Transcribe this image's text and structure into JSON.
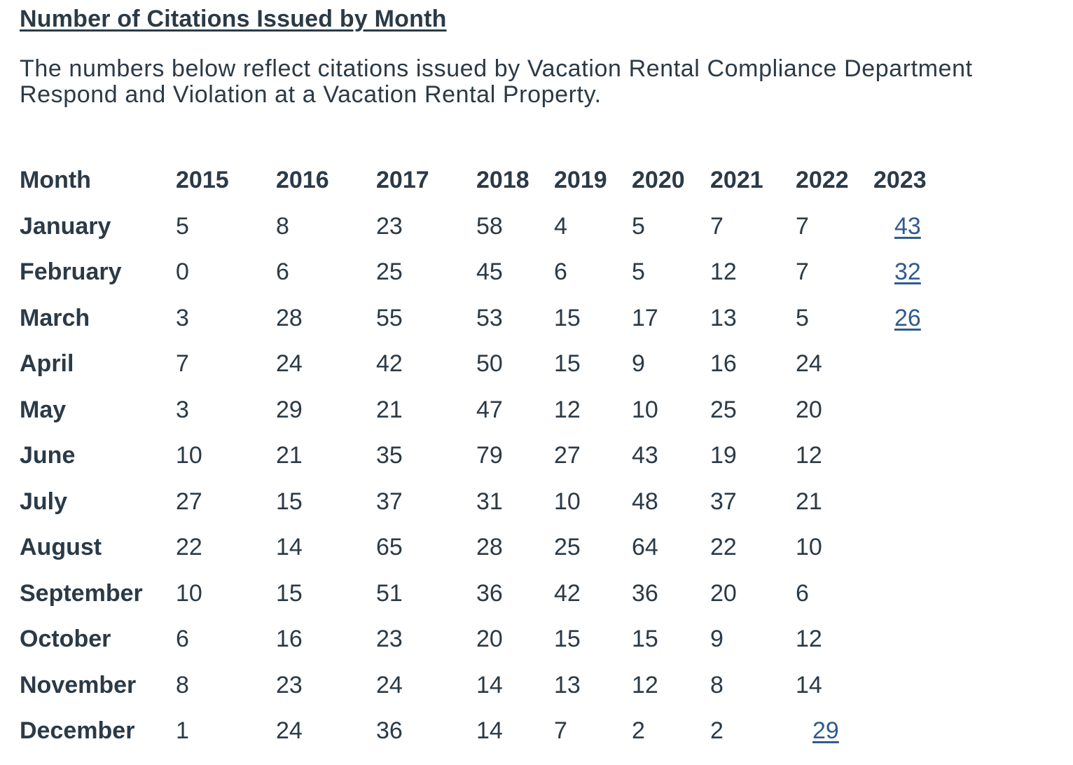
{
  "title": "Number of Citations Issued by Month",
  "intro": {
    "line1": "The numbers below reflect citations issued by Vacation Rental Compliance Department",
    "line2": "Respond and Violation at a Vacation Rental Property."
  },
  "table": {
    "headers": [
      "Month",
      "2015",
      "2016",
      "2017",
      "2018",
      "2019",
      "2020",
      "2021",
      "2022",
      "2023"
    ],
    "rows": [
      {
        "month": "January",
        "values": [
          "5",
          "8",
          "23",
          "58",
          "4",
          "5",
          "7",
          "7",
          "43"
        ]
      },
      {
        "month": "February",
        "values": [
          "0",
          "6",
          "25",
          "45",
          "6",
          "5",
          "12",
          "7",
          "32"
        ]
      },
      {
        "month": "March",
        "values": [
          "3",
          "28",
          "55",
          "53",
          "15",
          "17",
          "13",
          "5",
          "26"
        ]
      },
      {
        "month": "April",
        "values": [
          "7",
          "24",
          "42",
          "50",
          "15",
          "9",
          "16",
          "24",
          ""
        ]
      },
      {
        "month": "May",
        "values": [
          "3",
          "29",
          "21",
          "47",
          "12",
          "10",
          "25",
          "20",
          ""
        ]
      },
      {
        "month": "June",
        "values": [
          "10",
          "21",
          "35",
          "79",
          "27",
          "43",
          "19",
          "12",
          ""
        ]
      },
      {
        "month": "July",
        "values": [
          "27",
          "15",
          "37",
          "31",
          "10",
          "48",
          "37",
          "21",
          ""
        ]
      },
      {
        "month": "August",
        "values": [
          "22",
          "14",
          "65",
          "28",
          "25",
          "64",
          "22",
          "10",
          ""
        ]
      },
      {
        "month": "September",
        "values": [
          "10",
          "15",
          "51",
          "36",
          "42",
          "36",
          "20",
          "6",
          ""
        ]
      },
      {
        "month": "October",
        "values": [
          "6",
          "16",
          "23",
          "20",
          "15",
          "15",
          "9",
          "12",
          ""
        ]
      },
      {
        "month": "November",
        "values": [
          "8",
          "23",
          "24",
          "14",
          "13",
          "12",
          "8",
          "14",
          ""
        ]
      },
      {
        "month": "December",
        "values": [
          "1",
          "24",
          "36",
          "14",
          "7",
          "2",
          "2",
          "29",
          ""
        ]
      }
    ],
    "links": [
      "0.8",
      "1.8",
      "2.8",
      "11.7"
    ],
    "colors": {
      "text": "#2b3a47",
      "link": "#2f5b8f"
    }
  }
}
